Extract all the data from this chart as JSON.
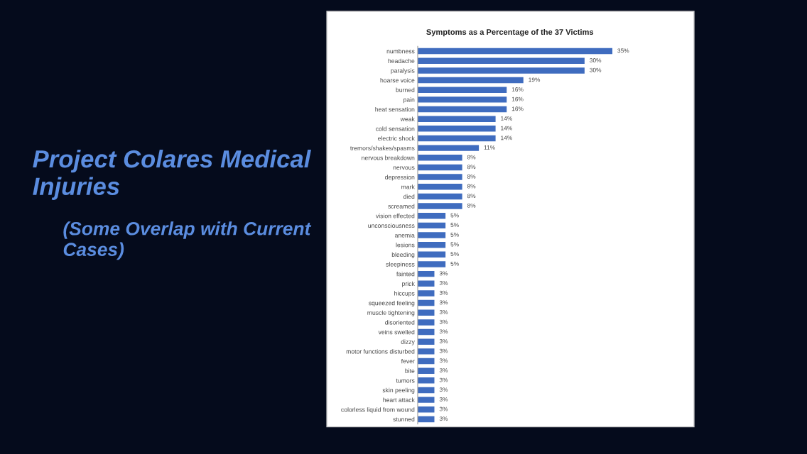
{
  "chart_data": {
    "type": "bar",
    "orientation": "horizontal",
    "title": "Symptoms as a Percentage of the 37 Victims",
    "annotations": [
      "Project Colares Medical Injuries",
      "(Some Overlap with Current Cases)"
    ],
    "categories": [
      "numbness",
      "headache",
      "paralysis",
      "hoarse voice",
      "burned",
      "pain",
      "heat sensation",
      "weak",
      "cold sensation",
      "electric shock",
      "tremors/shakes/spasms",
      "nervous breakdown",
      "nervous",
      "depression",
      "mark",
      "died",
      "screamed",
      "vision effected",
      "unconsciousness",
      "anemia",
      "lesions",
      "bleeding",
      "sleepiness",
      "fainted",
      "prick",
      "hiccups",
      "squeezed feeling",
      "muscle tightening",
      "disoriented",
      "veins swelled",
      "dizzy",
      "motor functions disturbed",
      "fever",
      "bite",
      "tumors",
      "skin peeling",
      "heart attack",
      "colorless liquid from wound",
      "stunned"
    ],
    "values": [
      35,
      30,
      30,
      19,
      16,
      16,
      16,
      14,
      14,
      14,
      11,
      8,
      8,
      8,
      8,
      8,
      8,
      5,
      5,
      5,
      5,
      5,
      5,
      3,
      3,
      3,
      3,
      3,
      3,
      3,
      3,
      3,
      3,
      3,
      3,
      3,
      3,
      3,
      3
    ],
    "value_labels": [
      "35%",
      "30%",
      "30%",
      "19%",
      "16%",
      "16%",
      "16%",
      "14%",
      "14%",
      "14%",
      "11%",
      "8%",
      "8%",
      "8%",
      "8%",
      "8%",
      "8%",
      "5%",
      "5%",
      "5%",
      "5%",
      "5%",
      "5%",
      "3%",
      "3%",
      "3%",
      "3%",
      "3%",
      "3%",
      "3%",
      "3%",
      "3%",
      "3%",
      "3%",
      "3%",
      "3%",
      "3%",
      "3%",
      "3%"
    ],
    "color": "#3f6cbf",
    "grid": false,
    "legend": false
  }
}
